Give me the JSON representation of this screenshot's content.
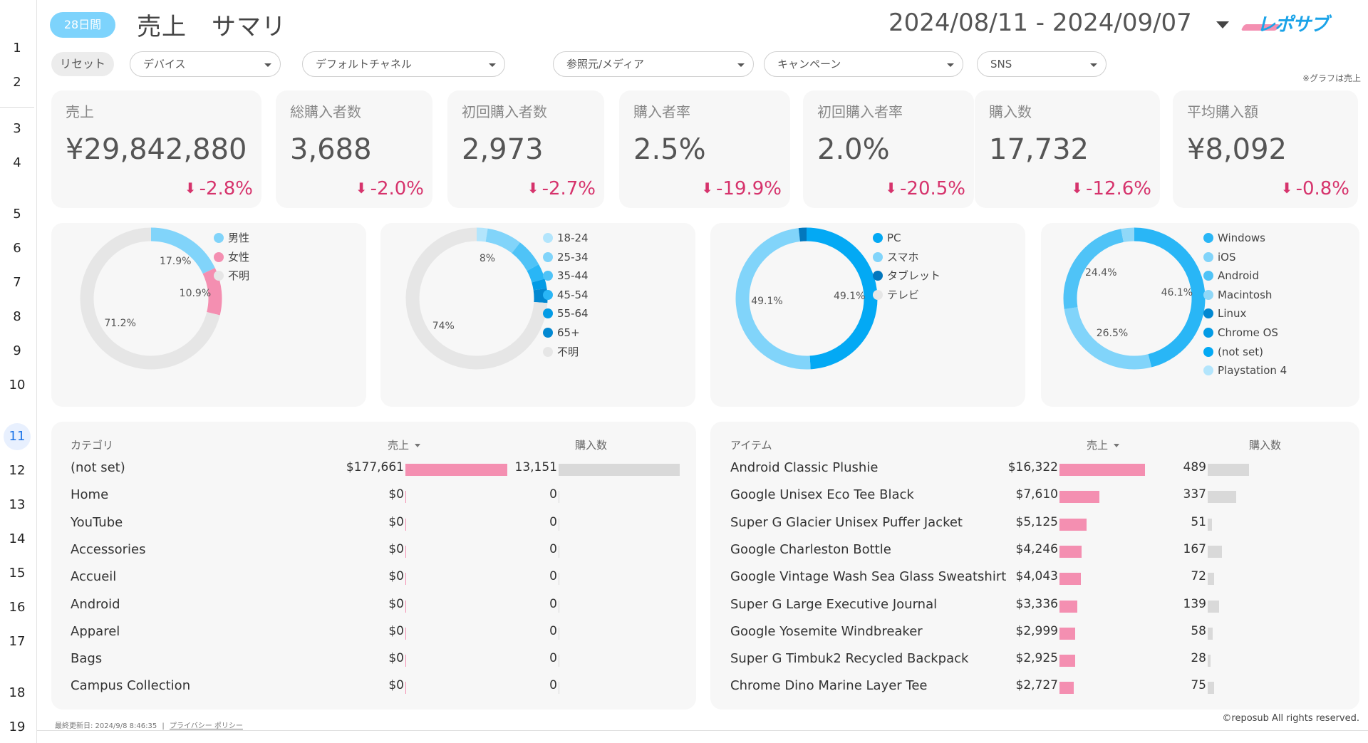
{
  "row_numbers": [
    "1",
    "2",
    "3",
    "4",
    "5",
    "6",
    "7",
    "8",
    "9",
    "10",
    "11",
    "12",
    "13",
    "14",
    "15",
    "16",
    "17",
    "18",
    "19"
  ],
  "header": {
    "badge": "28日間",
    "title": "売上　サマリ",
    "date_range": "2024/08/11 - 2024/09/07",
    "logo": "レポサブ"
  },
  "filters": {
    "reset": "リセット",
    "items": [
      "デバイス",
      "デフォルトチャネル",
      "参照元/メディア",
      "キャンペーン",
      "SNS"
    ]
  },
  "note": "※グラフは売上",
  "kpis": [
    {
      "label": "売上",
      "value": "¥29,842,880",
      "change": "-2.8%"
    },
    {
      "label": "総購入者数",
      "value": "3,688",
      "change": "-2.0%"
    },
    {
      "label": "初回購入者数",
      "value": "2,973",
      "change": "-2.7%"
    },
    {
      "label": "購入者率",
      "value": "2.5%",
      "change": "-19.9%"
    },
    {
      "label": "初回購入者率",
      "value": "2.0%",
      "change": "-20.5%"
    },
    {
      "label": "購入数",
      "value": "17,732",
      "change": "-12.6%"
    },
    {
      "label": "平均購入額",
      "value": "¥8,092",
      "change": "-0.8%"
    }
  ],
  "chart_data": [
    {
      "type": "pie",
      "categories": [
        "男性",
        "女性",
        "不明"
      ],
      "values": [
        17.9,
        10.9,
        71.2
      ],
      "data_labels": [
        "17.9%",
        "10.9%",
        "71.2%"
      ],
      "colors": [
        "#81d4fa",
        "#f48fb1",
        "#e6e6e6"
      ],
      "legend": "right"
    },
    {
      "type": "pie",
      "categories": [
        "18-24",
        "25-34",
        "35-44",
        "45-54",
        "55-64",
        "65+",
        "不明"
      ],
      "values": [
        2.5,
        8,
        6.5,
        3.5,
        2.2,
        3.3,
        74
      ],
      "data_labels": [
        "",
        "8%",
        "",
        "",
        "",
        "",
        "74%"
      ],
      "colors": [
        "#b3e5fc",
        "#81d4fa",
        "#4fc3f7",
        "#29b6f6",
        "#039be5",
        "#0288d1",
        "#e6e6e6"
      ],
      "legend": "right"
    },
    {
      "type": "pie",
      "categories": [
        "PC",
        "スマホ",
        "タブレット",
        "テレビ"
      ],
      "values": [
        49.1,
        49.1,
        1.8,
        0
      ],
      "data_labels": [
        "49.1%",
        "49.1%",
        "",
        ""
      ],
      "colors": [
        "#03a9f4",
        "#81d4fa",
        "#0277bd",
        "#e6e6e6"
      ],
      "legend": "right"
    },
    {
      "type": "pie",
      "categories": [
        "Windows",
        "iOS",
        "Android",
        "Macintosh",
        "Linux",
        "Chrome OS",
        "(not set)",
        "Playstation 4"
      ],
      "values": [
        46.1,
        26.5,
        24.4,
        3.0,
        0,
        0,
        0,
        0
      ],
      "data_labels": [
        "46.1%",
        "26.5%",
        "24.4%",
        "",
        "",
        "",
        "",
        ""
      ],
      "colors": [
        "#29b6f6",
        "#81d4fa",
        "#4fc3f7",
        "#90d8f8",
        "#0288d1",
        "#039be5",
        "#03a9f4",
        "#b3e5fc"
      ],
      "legend": "right"
    }
  ],
  "category_table": {
    "headers": {
      "name": "カテゴリ",
      "sales": "売上",
      "purchases": "購入数"
    },
    "rows": [
      {
        "name": "(not set)",
        "sales": "$177,661",
        "sales_value": 177661,
        "purchases": "13,151",
        "purchases_value": 13151
      },
      {
        "name": "Home",
        "sales": "$0",
        "sales_value": 0,
        "purchases": "0",
        "purchases_value": 0
      },
      {
        "name": "YouTube",
        "sales": "$0",
        "sales_value": 0,
        "purchases": "0",
        "purchases_value": 0
      },
      {
        "name": "Accessories",
        "sales": "$0",
        "sales_value": 0,
        "purchases": "0",
        "purchases_value": 0
      },
      {
        "name": "Accueil",
        "sales": "$0",
        "sales_value": 0,
        "purchases": "0",
        "purchases_value": 0
      },
      {
        "name": "Android",
        "sales": "$0",
        "sales_value": 0,
        "purchases": "0",
        "purchases_value": 0
      },
      {
        "name": "Apparel",
        "sales": "$0",
        "sales_value": 0,
        "purchases": "0",
        "purchases_value": 0
      },
      {
        "name": "Bags",
        "sales": "$0",
        "sales_value": 0,
        "purchases": "0",
        "purchases_value": 0
      },
      {
        "name": "Campus Collection",
        "sales": "$0",
        "sales_value": 0,
        "purchases": "0",
        "purchases_value": 0
      }
    ]
  },
  "item_table": {
    "headers": {
      "name": "アイテム",
      "sales": "売上",
      "purchases": "購入数"
    },
    "rows": [
      {
        "name": "Android Classic Plushie",
        "sales": "$16,322",
        "sales_value": 16322,
        "purchases": "489",
        "purchases_value": 489
      },
      {
        "name": "Google Unisex Eco Tee Black",
        "sales": "$7,610",
        "sales_value": 7610,
        "purchases": "337",
        "purchases_value": 337
      },
      {
        "name": "Super G Glacier Unisex Puffer Jacket",
        "sales": "$5,125",
        "sales_value": 5125,
        "purchases": "51",
        "purchases_value": 51
      },
      {
        "name": "Google Charleston Bottle",
        "sales": "$4,246",
        "sales_value": 4246,
        "purchases": "167",
        "purchases_value": 167
      },
      {
        "name": "Google Vintage Wash Sea Glass Sweatshirt",
        "sales": "$4,043",
        "sales_value": 4043,
        "purchases": "72",
        "purchases_value": 72
      },
      {
        "name": "Super G Large Executive Journal",
        "sales": "$3,336",
        "sales_value": 3336,
        "purchases": "139",
        "purchases_value": 139
      },
      {
        "name": "Google Yosemite Windbreaker",
        "sales": "$2,999",
        "sales_value": 2999,
        "purchases": "58",
        "purchases_value": 58
      },
      {
        "name": "Super G Timbuk2 Recycled Backpack",
        "sales": "$2,925",
        "sales_value": 2925,
        "purchases": "28",
        "purchases_value": 28
      },
      {
        "name": "Chrome Dino Marine Layer Tee",
        "sales": "$2,727",
        "sales_value": 2727,
        "purchases": "75",
        "purchases_value": 75
      }
    ]
  },
  "footer": {
    "updated": "最終更新日: 2024/9/8 8:46:35",
    "separator": "|",
    "privacy": "プライバシー ポリシー",
    "copyright": "©reposub All rights reserved."
  },
  "colors": {
    "accent": "#7dd3fc",
    "negative": "#d6336c",
    "sales_bar": "#f48fb1",
    "purchase_bar": "#d9d9d9",
    "card_bg": "#f7f7f7"
  }
}
